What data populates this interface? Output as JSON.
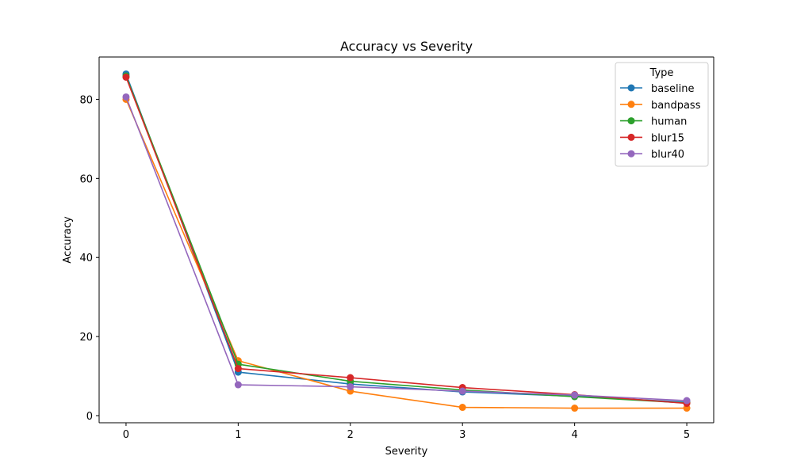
{
  "chart_data": {
    "type": "line",
    "title": "Accuracy vs Severity",
    "xlabel": "Severity",
    "ylabel": "Accuracy",
    "x": [
      0,
      1,
      2,
      3,
      4,
      5
    ],
    "xlim": [
      -0.24,
      5.24
    ],
    "ylim": [
      -1.8,
      90.7
    ],
    "xticks": [
      0,
      1,
      2,
      3,
      4,
      5
    ],
    "yticks": [
      0,
      20,
      40,
      60,
      80
    ],
    "grid": false,
    "legend": {
      "title": "Type",
      "position": "top-right"
    },
    "series": [
      {
        "name": "baseline",
        "color": "#1f77b4",
        "marker": "circle",
        "values": [
          86.4,
          11.0,
          8.0,
          6.0,
          4.9,
          3.4
        ]
      },
      {
        "name": "bandpass",
        "color": "#ff7f0e",
        "marker": "circle",
        "values": [
          80.0,
          13.9,
          6.2,
          2.1,
          1.9,
          1.9
        ]
      },
      {
        "name": "human",
        "color": "#2ca02c",
        "marker": "circle",
        "values": [
          85.9,
          13.0,
          8.7,
          6.5,
          4.8,
          3.2
        ]
      },
      {
        "name": "blur15",
        "color": "#d62728",
        "marker": "circle",
        "values": [
          85.6,
          11.9,
          9.6,
          7.1,
          5.3,
          3.1
        ]
      },
      {
        "name": "blur40",
        "color": "#9467bd",
        "marker": "circle",
        "values": [
          80.6,
          7.8,
          7.3,
          6.2,
          5.2,
          3.8
        ]
      }
    ]
  }
}
